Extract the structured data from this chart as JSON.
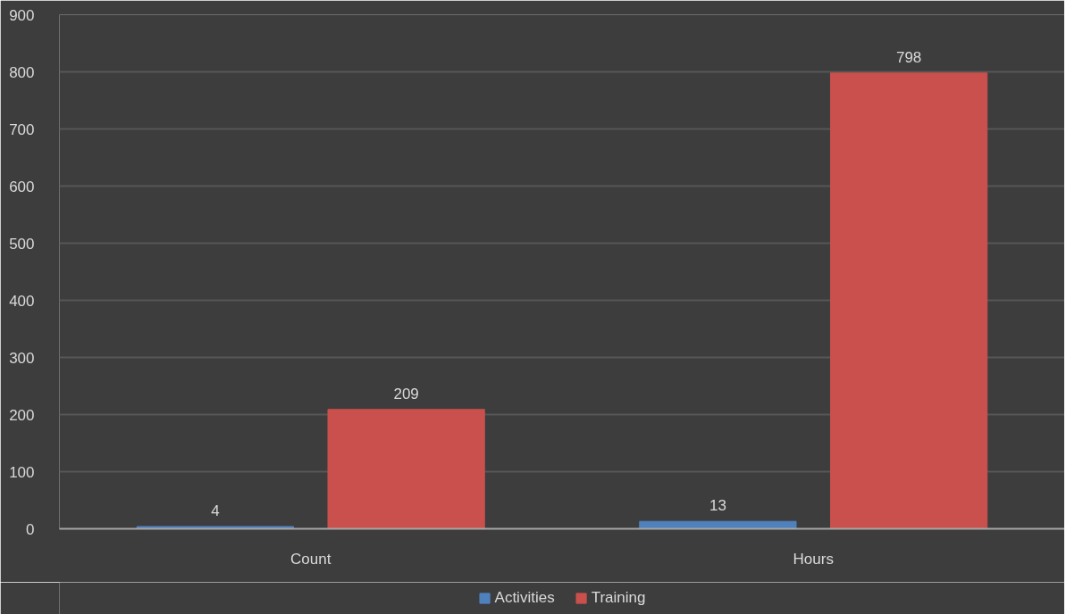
{
  "chart_data": {
    "type": "bar",
    "categories": [
      "Count",
      "Hours"
    ],
    "series": [
      {
        "name": "Activities",
        "color": "#4f81bd",
        "values": [
          4,
          13
        ]
      },
      {
        "name": "Training",
        "color": "#c9504c",
        "values": [
          209,
          798
        ]
      }
    ],
    "ylim": [
      0,
      900
    ],
    "yticks": [
      0,
      100,
      200,
      300,
      400,
      500,
      600,
      700,
      800,
      900
    ],
    "grid": "y",
    "legend": "bottom",
    "data_labels": true
  }
}
